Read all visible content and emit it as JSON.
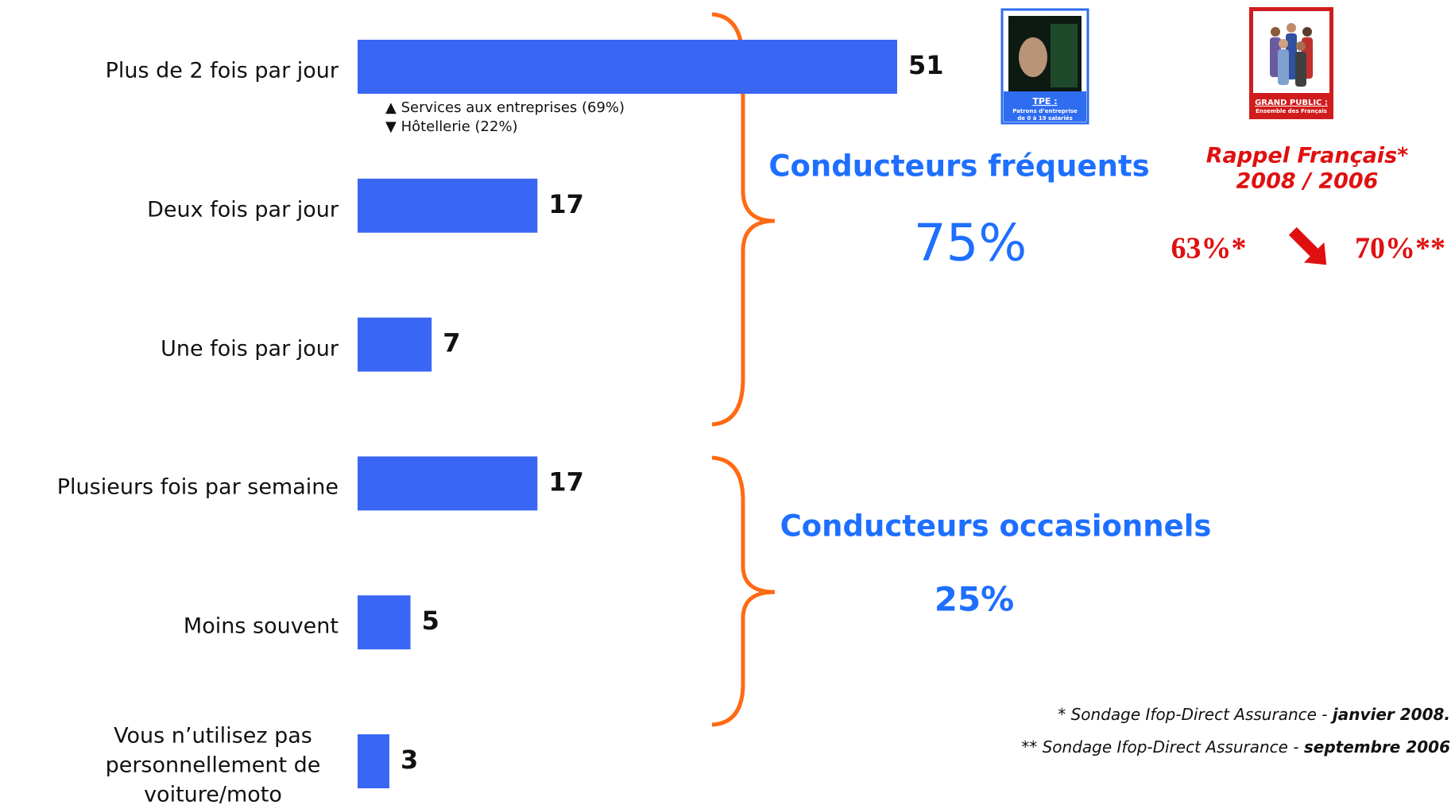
{
  "chart_data": {
    "type": "bar",
    "orientation": "horizontal",
    "categories": [
      "Plus de 2 fois par jour",
      "Deux fois par jour",
      "Une fois par jour",
      "Plusieurs fois par semaine",
      "Moins souvent",
      "Vous n’utilisez pas personnellement de voiture/moto"
    ],
    "values": [
      51,
      17,
      7,
      17,
      5,
      3
    ],
    "color": "#3a66f5",
    "annotations": [
      "▲ Services aux entreprises (69%)",
      "▼ Hôtellerie (22%)"
    ],
    "groups": [
      {
        "name": "Conducteurs fréquents",
        "share": "75%"
      },
      {
        "name": "Conducteurs occasionnels",
        "share": "25%"
      }
    ],
    "recall": {
      "title": [
        "Rappel Français*",
        "2008 / 2006"
      ],
      "values": [
        "63%*",
        "70%**"
      ]
    },
    "icons": {
      "tpe": {
        "title": "TPE :",
        "subtitle": [
          "Patrons d’entreprise",
          "de 0 à 19 salariés"
        ]
      },
      "grand_public": {
        "title": "GRAND PUBLIC :",
        "subtitle": "Ensemble des Français"
      }
    },
    "footnotes": [
      {
        "text": "* Sondage Ifop-Direct Assurance - ",
        "emphasis": "janvier 2008."
      },
      {
        "text": "** Sondage Ifop-Direct Assurance - ",
        "emphasis": "septembre 2006"
      }
    ]
  }
}
